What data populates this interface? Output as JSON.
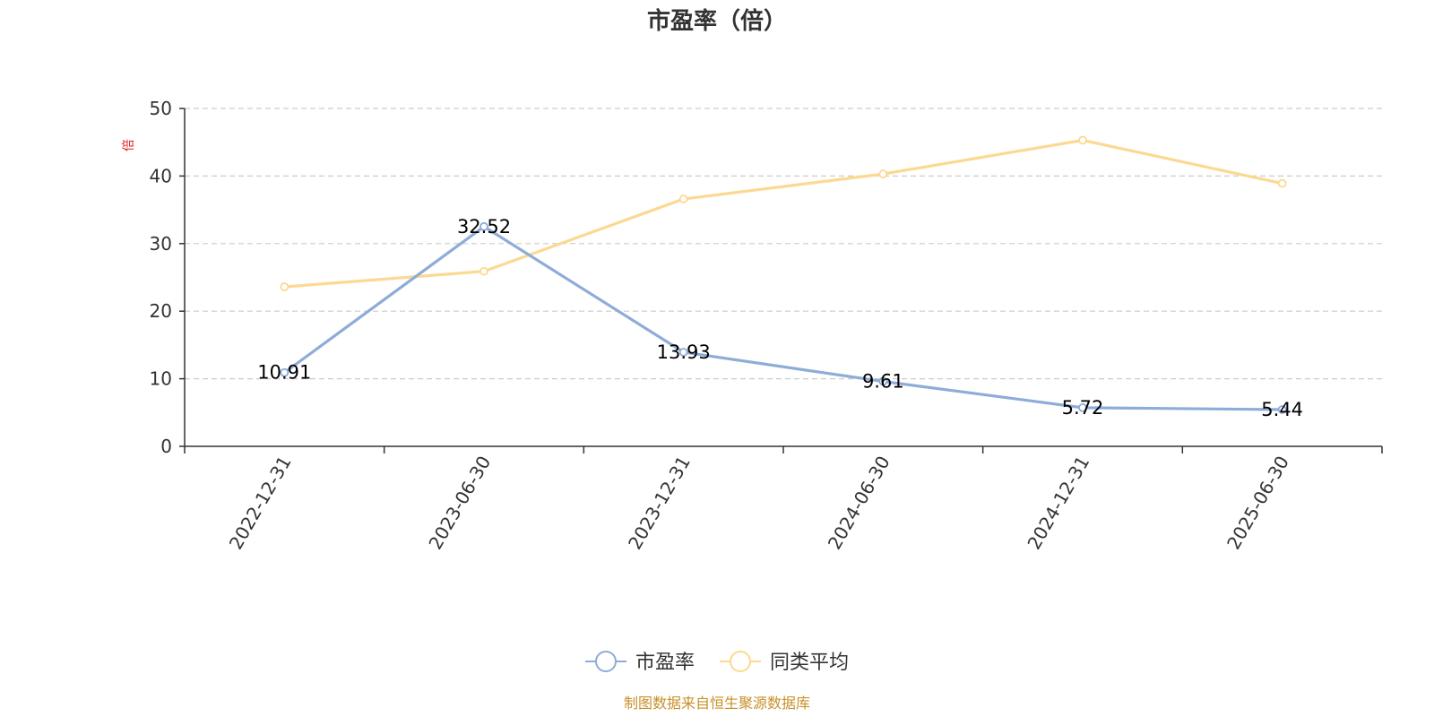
{
  "chart_data": {
    "type": "line",
    "title": "市盈率（倍）",
    "y_unit": "倍",
    "categories": [
      "2022-12-31",
      "2023-06-30",
      "2023-12-31",
      "2024-06-30",
      "2024-12-31",
      "2025-06-30"
    ],
    "ylim": [
      0,
      50
    ],
    "yticks": [
      0,
      10,
      20,
      30,
      40,
      50
    ],
    "grid": true,
    "legend_position": "bottom-center",
    "series": [
      {
        "name": "市盈率",
        "color": "#8eacd8",
        "values": [
          10.91,
          32.52,
          13.93,
          9.61,
          5.72,
          5.44
        ],
        "labels": [
          "10.91",
          "32.52",
          "13.93",
          "9.61",
          "5.72",
          "5.44"
        ],
        "show_labels": true
      },
      {
        "name": "同类平均",
        "color": "#fcd992",
        "values": [
          23.6,
          25.9,
          36.6,
          40.3,
          45.3,
          38.9
        ],
        "show_labels": false
      }
    ],
    "source": "制图数据来自恒生聚源数据库",
    "source_color": "#c8902a"
  }
}
